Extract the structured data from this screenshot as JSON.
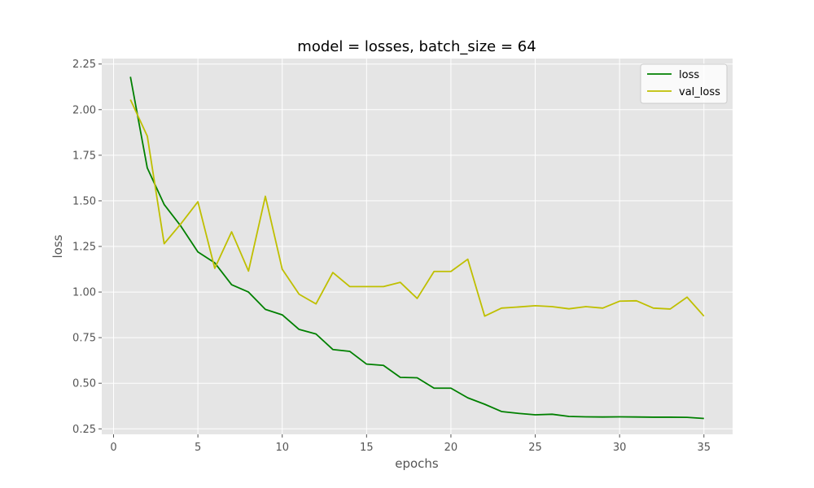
{
  "chart_data": {
    "type": "line",
    "title": "model = losses, batch_size = 64",
    "xlabel": "epochs",
    "ylabel": "loss",
    "xlim": [
      -0.7,
      36.7
    ],
    "ylim": [
      0.22,
      2.28
    ],
    "xticks": [
      0,
      5,
      10,
      15,
      20,
      25,
      30,
      35
    ],
    "yticks": [
      0.25,
      0.5,
      0.75,
      1.0,
      1.25,
      1.5,
      1.75,
      2.0,
      2.25
    ],
    "xtick_labels": [
      "0",
      "5",
      "10",
      "15",
      "20",
      "25",
      "30",
      "35"
    ],
    "ytick_labels": [
      "0.25",
      "0.50",
      "0.75",
      "1.00",
      "1.25",
      "1.50",
      "1.75",
      "2.00",
      "2.25"
    ],
    "grid": true,
    "legend_position": "top-right",
    "x": [
      1,
      2,
      3,
      4,
      5,
      6,
      7,
      8,
      9,
      10,
      11,
      12,
      13,
      14,
      15,
      16,
      17,
      18,
      19,
      20,
      21,
      22,
      23,
      24,
      25,
      26,
      27,
      28,
      29,
      30,
      31,
      32,
      33,
      34,
      35
    ],
    "series": [
      {
        "name": "loss",
        "color": "#008000",
        "values": [
          2.18,
          1.68,
          1.48,
          1.36,
          1.22,
          1.16,
          1.04,
          1.0,
          0.905,
          0.875,
          0.795,
          0.77,
          0.685,
          0.675,
          0.605,
          0.598,
          0.532,
          0.53,
          0.473,
          0.473,
          0.42,
          0.385,
          0.345,
          0.335,
          0.327,
          0.33,
          0.318,
          0.316,
          0.315,
          0.316,
          0.315,
          0.314,
          0.314,
          0.313,
          0.307
        ]
      },
      {
        "name": "val_loss",
        "color": "#bfbf00",
        "values": [
          2.055,
          1.855,
          1.265,
          1.375,
          1.495,
          1.13,
          1.33,
          1.115,
          1.525,
          1.125,
          0.988,
          0.935,
          1.107,
          1.03,
          1.03,
          1.03,
          1.053,
          0.965,
          1.113,
          1.113,
          1.18,
          0.868,
          0.912,
          0.918,
          0.925,
          0.92,
          0.908,
          0.92,
          0.912,
          0.95,
          0.952,
          0.912,
          0.907,
          0.972,
          0.868
        ]
      }
    ]
  }
}
